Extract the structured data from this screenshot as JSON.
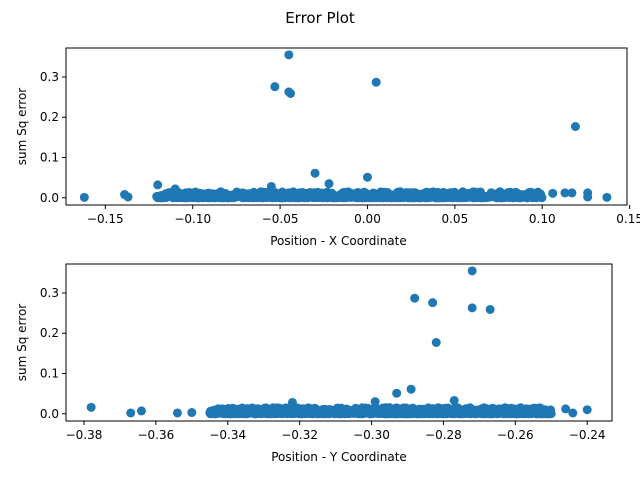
{
  "figure_title": "Error Plot",
  "marker_color": "#1f77b4",
  "chart_data": [
    {
      "type": "scatter",
      "xlabel": "Position - X Coordinate",
      "ylabel": "sum Sq error",
      "xlim": [
        -0.1725,
        0.1485
      ],
      "ylim": [
        -0.018,
        0.372
      ],
      "xticks": [
        -0.15,
        -0.1,
        -0.05,
        0.0,
        0.05,
        0.1,
        0.15
      ],
      "xtick_labels": [
        "−0.15",
        "−0.10",
        "−0.05",
        "0.00",
        "0.05",
        "0.10",
        "0.15"
      ],
      "yticks": [
        0.0,
        0.1,
        0.2,
        0.3
      ],
      "ytick_labels": [
        "0.0",
        "0.1",
        "0.2",
        "0.3"
      ],
      "grid": false,
      "outliers": [
        {
          "x": -0.045,
          "y": 0.355
        },
        {
          "x": 0.005,
          "y": 0.287
        },
        {
          "x": -0.053,
          "y": 0.276
        },
        {
          "x": -0.045,
          "y": 0.263
        },
        {
          "x": -0.044,
          "y": 0.259
        },
        {
          "x": 0.119,
          "y": 0.177
        },
        {
          "x": -0.03,
          "y": 0.061
        },
        {
          "x": 0.0,
          "y": 0.051
        },
        {
          "x": -0.12,
          "y": 0.032
        },
        {
          "x": -0.055,
          "y": 0.028
        },
        {
          "x": -0.022,
          "y": 0.035
        },
        {
          "x": -0.11,
          "y": 0.022
        },
        {
          "x": -0.162,
          "y": 0.001
        },
        {
          "x": -0.139,
          "y": 0.008
        },
        {
          "x": -0.137,
          "y": 0.002
        },
        {
          "x": 0.137,
          "y": 0.001
        },
        {
          "x": 0.126,
          "y": 0.012
        },
        {
          "x": 0.126,
          "y": 0.002
        },
        {
          "x": 0.117,
          "y": 0.012
        },
        {
          "x": 0.113,
          "y": 0.012
        },
        {
          "x": 0.106,
          "y": 0.011
        }
      ],
      "dense_cluster": {
        "x_range": [
          -0.121,
          0.1
        ],
        "y_range": [
          0.0,
          0.015
        ]
      }
    },
    {
      "type": "scatter",
      "xlabel": "Position - Y Coordinate",
      "ylabel": "sum Sq error",
      "xlim": [
        -0.385,
        -0.2331
      ],
      "ylim": [
        -0.018,
        0.372
      ],
      "xticks": [
        -0.38,
        -0.36,
        -0.34,
        -0.32,
        -0.3,
        -0.28,
        -0.26,
        -0.24
      ],
      "xtick_labels": [
        "−0.38",
        "−0.36",
        "−0.34",
        "−0.32",
        "−0.30",
        "−0.28",
        "−0.26",
        "−0.24"
      ],
      "yticks": [
        0.0,
        0.1,
        0.2,
        0.3
      ],
      "ytick_labels": [
        "0.0",
        "0.1",
        "0.2",
        "0.3"
      ],
      "grid": false,
      "outliers": [
        {
          "x": -0.272,
          "y": 0.355
        },
        {
          "x": -0.288,
          "y": 0.287
        },
        {
          "x": -0.283,
          "y": 0.276
        },
        {
          "x": -0.272,
          "y": 0.263
        },
        {
          "x": -0.267,
          "y": 0.259
        },
        {
          "x": -0.282,
          "y": 0.177
        },
        {
          "x": -0.289,
          "y": 0.061
        },
        {
          "x": -0.293,
          "y": 0.051
        },
        {
          "x": -0.378,
          "y": 0.016
        },
        {
          "x": -0.367,
          "y": 0.002
        },
        {
          "x": -0.364,
          "y": 0.007
        },
        {
          "x": -0.354,
          "y": 0.002
        },
        {
          "x": -0.35,
          "y": 0.003
        },
        {
          "x": -0.24,
          "y": 0.01
        },
        {
          "x": -0.244,
          "y": 0.002
        },
        {
          "x": -0.246,
          "y": 0.012
        },
        {
          "x": -0.277,
          "y": 0.033
        },
        {
          "x": -0.299,
          "y": 0.03
        },
        {
          "x": -0.322,
          "y": 0.028
        }
      ],
      "dense_cluster": {
        "x_range": [
          -0.345,
          -0.25
        ],
        "y_range": [
          0.0,
          0.015
        ]
      }
    }
  ]
}
